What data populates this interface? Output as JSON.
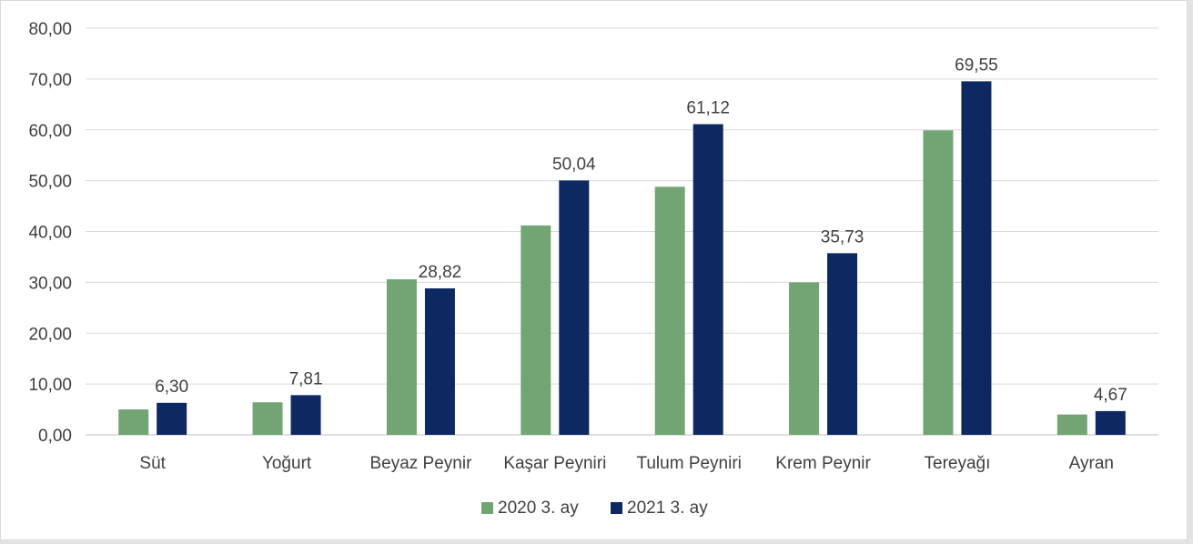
{
  "chart_data": {
    "type": "bar",
    "categories": [
      "Süt",
      "Yoğurt",
      "Beyaz Peynir",
      "Kaşar Peyniri",
      "Tulum Peyniri",
      "Krem Peynir",
      "Tereyağı",
      "Ayran"
    ],
    "series": [
      {
        "name": "2020 3. ay",
        "color": "#72a474",
        "values": [
          5.0,
          6.4,
          30.6,
          41.2,
          48.8,
          30.0,
          59.9,
          4.0
        ]
      },
      {
        "name": "2021 3. ay",
        "color": "#0e2861",
        "values": [
          6.3,
          7.81,
          28.82,
          50.04,
          61.12,
          35.73,
          69.55,
          4.67
        ]
      }
    ],
    "data_labels": [
      "6,30",
      "7,81",
      "28,82",
      "50,04",
      "61,12",
      "35,73",
      "69,55",
      "4,67"
    ],
    "yticks": [
      "0,00",
      "10,00",
      "20,00",
      "30,00",
      "40,00",
      "50,00",
      "60,00",
      "70,00",
      "80,00"
    ],
    "ylim": [
      0,
      80
    ],
    "grid": true,
    "legend_position": "bottom-center",
    "title": "",
    "xlabel": "",
    "ylabel": ""
  }
}
